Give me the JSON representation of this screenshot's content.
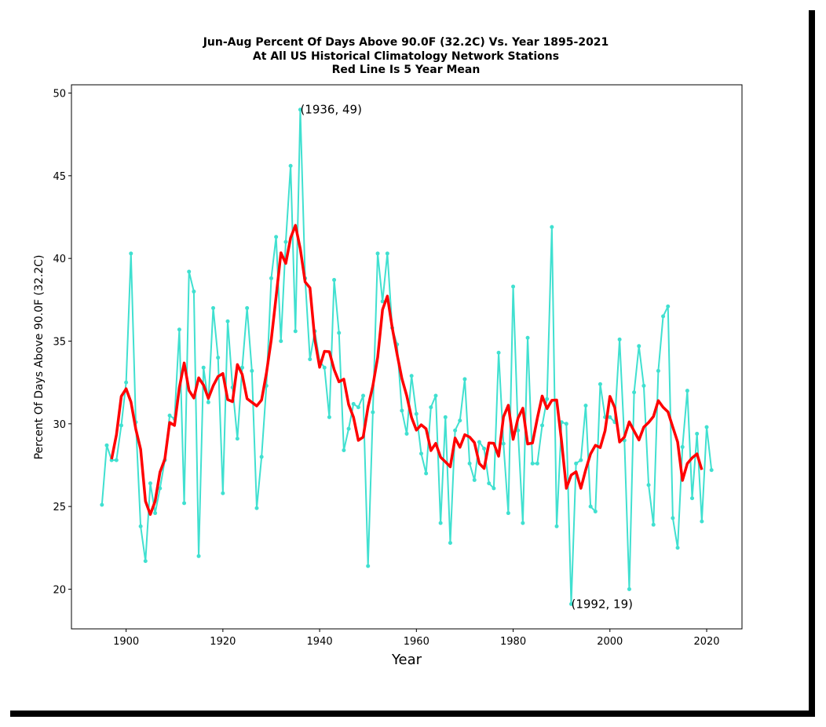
{
  "chart_data": {
    "type": "line",
    "title": [
      "Jun-Aug Percent Of Days Above 90.0F (32.2C) Vs. Year 1895-2021",
      "At All US Historical Climatology Network Stations",
      "Red Line Is 5 Year Mean"
    ],
    "x_label": "Year",
    "y_label": "Percent Of Days Above 90.0F (32.2C)",
    "xlim": [
      1888.7,
      2027.3
    ],
    "ylim": [
      17.6,
      50.5
    ],
    "xticks": [
      1900,
      1920,
      1940,
      1960,
      1980,
      2000,
      2020
    ],
    "yticks": [
      20,
      25,
      30,
      35,
      40,
      45,
      50
    ],
    "series": [
      {
        "color": "#40e0d0",
        "markers": true,
        "x": [
          1895,
          1896,
          1897,
          1898,
          1899,
          1900,
          1901,
          1902,
          1903,
          1904,
          1905,
          1906,
          1907,
          1908,
          1909,
          1910,
          1911,
          1912,
          1913,
          1914,
          1915,
          1916,
          1917,
          1918,
          1919,
          1920,
          1921,
          1922,
          1923,
          1924,
          1925,
          1926,
          1927,
          1928,
          1929,
          1930,
          1931,
          1932,
          1933,
          1934,
          1935,
          1936,
          1937,
          1938,
          1939,
          1940,
          1941,
          1942,
          1943,
          1944,
          1945,
          1946,
          1947,
          1948,
          1949,
          1950,
          1951,
          1952,
          1953,
          1954,
          1955,
          1956,
          1957,
          1958,
          1959,
          1960,
          1961,
          1962,
          1963,
          1964,
          1965,
          1966,
          1967,
          1968,
          1969,
          1970,
          1971,
          1972,
          1973,
          1974,
          1975,
          1976,
          1977,
          1978,
          1979,
          1980,
          1981,
          1982,
          1983,
          1984,
          1985,
          1986,
          1987,
          1988,
          1989,
          1990,
          1991,
          1992,
          1993,
          1994,
          1995,
          1996,
          1997,
          1998,
          1999,
          2000,
          2001,
          2002,
          2003,
          2004,
          2005,
          2006,
          2007,
          2008,
          2009,
          2010,
          2011,
          2012,
          2013,
          2014,
          2015,
          2016,
          2017,
          2018,
          2019,
          2020,
          2021
        ],
        "values": [
          25.1,
          28.7,
          27.8,
          27.8,
          29.9,
          32.5,
          40.3,
          30.1,
          23.8,
          21.7,
          26.4,
          24.6,
          26.1,
          27.8,
          30.5,
          30.3,
          35.7,
          25.2,
          39.2,
          38.0,
          22.0,
          33.4,
          31.3,
          37.0,
          34.0,
          25.8,
          36.2,
          32.2,
          29.1,
          33.4,
          37.0,
          33.2,
          24.9,
          28.0,
          32.3,
          38.8,
          41.3,
          35.0,
          41.0,
          45.6,
          35.6,
          49,
          38.8,
          33.9,
          35.6,
          33.8,
          33.4,
          30.4,
          38.7,
          35.5,
          28.4,
          29.7,
          31.2,
          31.0,
          31.7,
          21.4,
          30.7,
          40.3,
          37.4,
          40.3,
          35.8,
          34.8,
          30.8,
          29.4,
          32.9,
          30.6,
          28.2,
          27.0,
          31.0,
          31.7,
          24.0,
          30.4,
          22.8,
          29.6,
          30.2,
          32.7,
          27.6,
          26.6,
          28.9,
          28.5,
          26.4,
          26.1,
          34.3,
          28.8,
          24.6,
          38.3,
          29.6,
          24.0,
          35.2,
          27.6,
          27.6,
          29.9,
          31.5,
          41.9,
          23.8,
          30.1,
          30.0,
          19.1,
          27.6,
          27.8,
          31.1,
          25.0,
          24.7,
          32.4,
          30.4,
          30.4,
          30.1,
          35.1,
          29.0,
          20.0,
          31.9,
          34.7,
          32.3,
          26.3,
          23.9,
          33.2,
          36.5,
          37.1,
          24.3,
          22.5,
          28.6,
          32.0,
          25.5,
          29.4,
          24.1,
          29.8,
          27.2
        ]
      },
      {
        "color": "#ff0000",
        "markers": false,
        "x": [
          1897,
          1898,
          1899,
          1900,
          1901,
          1902,
          1903,
          1904,
          1905,
          1906,
          1907,
          1908,
          1909,
          1910,
          1911,
          1912,
          1913,
          1914,
          1915,
          1916,
          1917,
          1918,
          1919,
          1920,
          1921,
          1922,
          1923,
          1924,
          1925,
          1926,
          1927,
          1928,
          1929,
          1930,
          1931,
          1932,
          1933,
          1934,
          1935,
          1936,
          1937,
          1938,
          1939,
          1940,
          1941,
          1942,
          1943,
          1944,
          1945,
          1946,
          1947,
          1948,
          1949,
          1950,
          1951,
          1952,
          1953,
          1954,
          1955,
          1956,
          1957,
          1958,
          1959,
          1960,
          1961,
          1962,
          1963,
          1964,
          1965,
          1966,
          1967,
          1968,
          1969,
          1970,
          1971,
          1972,
          1973,
          1974,
          1975,
          1976,
          1977,
          1978,
          1979,
          1980,
          1981,
          1982,
          1983,
          1984,
          1985,
          1986,
          1987,
          1988,
          1989,
          1990,
          1991,
          1992,
          1993,
          1994,
          1995,
          1996,
          1997,
          1998,
          1999,
          2000,
          2001,
          2002,
          2003,
          2004,
          2005,
          2006,
          2007,
          2008,
          2009,
          2010,
          2011,
          2012,
          2013,
          2014,
          2015,
          2016,
          2017,
          2018,
          2019
        ],
        "values": [
          27.86,
          29.34,
          31.66,
          32.12,
          31.32,
          29.68,
          28.46,
          25.32,
          24.52,
          25.32,
          27.08,
          27.86,
          30.08,
          29.9,
          32.18,
          33.68,
          32.02,
          31.56,
          32.78,
          32.34,
          31.54,
          32.3,
          32.86,
          33.04,
          31.46,
          31.34,
          33.58,
          32.98,
          31.52,
          31.3,
          31.08,
          31.44,
          33.06,
          35.08,
          37.68,
          40.34,
          39.7,
          41.24,
          42.0,
          40.58,
          38.58,
          38.22,
          35.1,
          33.42,
          34.38,
          34.36,
          33.28,
          32.54,
          32.7,
          31.16,
          30.4,
          29.0,
          29.2,
          31.02,
          32.3,
          34.02,
          36.9,
          37.72,
          35.82,
          34.22,
          32.74,
          31.7,
          30.38,
          29.62,
          29.94,
          29.7,
          28.38,
          28.82,
          27.98,
          27.7,
          27.4,
          29.14,
          28.58,
          29.34,
          29.2,
          28.86,
          27.6,
          27.3,
          28.84,
          28.82,
          28.04,
          30.42,
          31.12,
          29.06,
          30.34,
          30.94,
          28.78,
          28.84,
          30.34,
          31.68,
          30.92,
          31.42,
          31.44,
          28.96,
          26.1,
          26.9,
          27.1,
          26.1,
          27.22,
          28.18,
          28.7,
          28.56,
          29.58,
          31.66,
          30.98,
          28.9,
          29.2,
          30.12,
          29.56,
          29.02,
          29.8,
          30.08,
          30.44,
          31.4,
          31.0,
          30.72,
          29.8,
          28.9,
          26.58,
          27.6,
          27.94,
          28.18,
          27.22
        ]
      }
    ],
    "annotations": [
      {
        "text": "(1936, 49)",
        "x": 1936,
        "y": 49
      },
      {
        "text": "(1992, 19)",
        "x": 1992,
        "y": 19.1
      }
    ]
  }
}
